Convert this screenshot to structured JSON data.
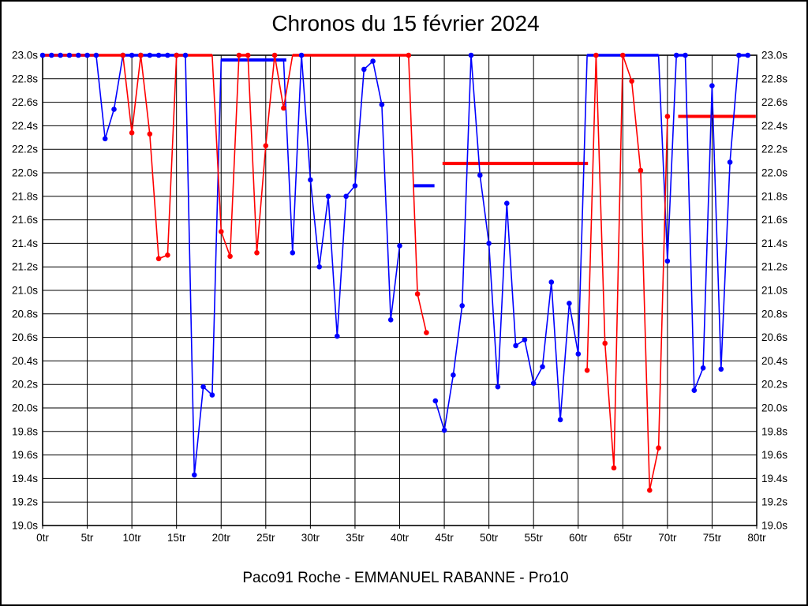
{
  "chart_data": {
    "type": "line",
    "title": "Chronos du 15 février 2024",
    "caption": "Paco91 Roche - EMMANUEL RABANNE - Pro10",
    "x_axis": {
      "min": 0,
      "max": 80,
      "gridline_step": 5,
      "unit": "tr",
      "tick_labels": [
        "0tr",
        "5tr",
        "10tr",
        "15tr",
        "20tr",
        "25tr",
        "30tr",
        "35tr",
        "40tr",
        "45tr",
        "50tr",
        "55tr",
        "60tr",
        "65tr",
        "70tr",
        "75tr",
        "80tr"
      ]
    },
    "y_axis": {
      "min": 19.0,
      "max": 23.0,
      "gridline_step": 0.2,
      "unit": "s",
      "labels_on_both_sides": true,
      "tick_labels": [
        "23.0s",
        "22.8s",
        "22.6s",
        "22.4s",
        "22.2s",
        "22.0s",
        "21.8s",
        "21.6s",
        "21.4s",
        "21.2s",
        "21.0s",
        "20.8s",
        "20.6s",
        "20.4s",
        "20.2s",
        "20.0s",
        "19.8s",
        "19.6s",
        "19.4s",
        "19.2s",
        "19.0s"
      ]
    },
    "grid": true,
    "clip_value": 23.0,
    "series": [
      {
        "name": "blue",
        "color": "#0000ff",
        "values": [
          23,
          23,
          23,
          23,
          23,
          23,
          23,
          22.29,
          22.54,
          23,
          23,
          23,
          23,
          23,
          23,
          23,
          23,
          19.43,
          20.18,
          20.11,
          22.96,
          22.96,
          22.96,
          22.96,
          22.96,
          22.96,
          22.96,
          22.96,
          21.32,
          23,
          21.94,
          21.2,
          21.8,
          20.61,
          21.8,
          21.89,
          22.88,
          22.95,
          22.58,
          20.75,
          21.38,
          null,
          null,
          null,
          20.06,
          19.81,
          20.28,
          20.87,
          23,
          21.98,
          21.4,
          20.18,
          21.74,
          20.53,
          20.58,
          20.21,
          20.35,
          21.07,
          19.9,
          20.89,
          20.46,
          23,
          23,
          23,
          23,
          23,
          23,
          23,
          23,
          23,
          21.25,
          23,
          23,
          20.15,
          20.34,
          22.74,
          20.33,
          22.09,
          23,
          23
        ],
        "no_dot_ranges": [
          [
            20,
            27
          ],
          [
            61,
            69
          ]
        ]
      },
      {
        "name": "red",
        "color": "#ff0000",
        "values": [
          23,
          23,
          23,
          23,
          23,
          23,
          23,
          23,
          23,
          23,
          22.34,
          23,
          22.33,
          21.27,
          21.3,
          23,
          23,
          23,
          23,
          23,
          21.5,
          21.29,
          23,
          23,
          21.32,
          22.23,
          23,
          22.55,
          23,
          23,
          23,
          23,
          23,
          23,
          23,
          23,
          23,
          23,
          23,
          23,
          23,
          23,
          20.97,
          20.64,
          null,
          null,
          null,
          null,
          null,
          null,
          null,
          null,
          null,
          null,
          null,
          null,
          null,
          null,
          null,
          null,
          null,
          20.32,
          23,
          20.55,
          19.49,
          23,
          22.78,
          22.02,
          19.3,
          19.66,
          22.48,
          null,
          null,
          null,
          null,
          null,
          null,
          null,
          null,
          null
        ],
        "no_dot_ranges": [
          [
            0,
            8
          ],
          [
            16,
            19
          ],
          [
            28,
            40
          ]
        ]
      }
    ],
    "ref_segments": [
      {
        "series": "blue",
        "from_lap": 20.0,
        "to_lap": 27.3,
        "time": 22.96
      },
      {
        "series": "blue",
        "from_lap": 41.5,
        "to_lap": 43.9,
        "time": 21.89
      },
      {
        "series": "red",
        "from_lap": 44.8,
        "to_lap": 61.1,
        "time": 22.08
      },
      {
        "series": "red",
        "from_lap": 71.2,
        "to_lap": 79.9,
        "time": 22.48
      }
    ]
  }
}
